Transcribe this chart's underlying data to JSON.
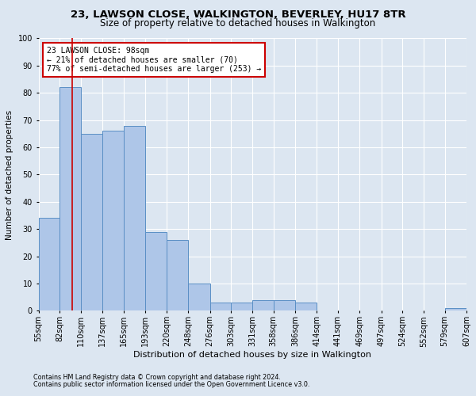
{
  "title1": "23, LAWSON CLOSE, WALKINGTON, BEVERLEY, HU17 8TR",
  "title2": "Size of property relative to detached houses in Walkington",
  "xlabel": "Distribution of detached houses by size in Walkington",
  "ylabel": "Number of detached properties",
  "footnote1": "Contains HM Land Registry data © Crown copyright and database right 2024.",
  "footnote2": "Contains public sector information licensed under the Open Government Licence v3.0.",
  "annotation_line1": "23 LAWSON CLOSE: 98sqm",
  "annotation_line2": "← 21% of detached houses are smaller (70)",
  "annotation_line3": "77% of semi-detached houses are larger (253) →",
  "property_size": 98,
  "bin_edges": [
    55,
    82,
    110,
    137,
    165,
    193,
    220,
    248,
    276,
    303,
    331,
    358,
    386,
    414,
    441,
    469,
    497,
    524,
    552,
    579,
    607
  ],
  "bar_heights": [
    34,
    82,
    65,
    66,
    68,
    29,
    26,
    10,
    3,
    3,
    4,
    4,
    3,
    0,
    0,
    0,
    0,
    0,
    0,
    1
  ],
  "bar_color": "#aec6e8",
  "bar_edge_color": "#5a8fc5",
  "vline_color": "#cc0000",
  "vline_x": 98,
  "annotation_box_color": "#cc0000",
  "background_color": "#dce6f1",
  "plot_bg_color": "#dce6f1",
  "ylim": [
    0,
    100
  ],
  "yticks": [
    0,
    10,
    20,
    30,
    40,
    50,
    60,
    70,
    80,
    90,
    100
  ],
  "title1_fontsize": 9.5,
  "title2_fontsize": 8.5,
  "xlabel_fontsize": 8,
  "ylabel_fontsize": 7.5,
  "annotation_fontsize": 7,
  "tick_fontsize": 7,
  "footnote_fontsize": 5.8
}
